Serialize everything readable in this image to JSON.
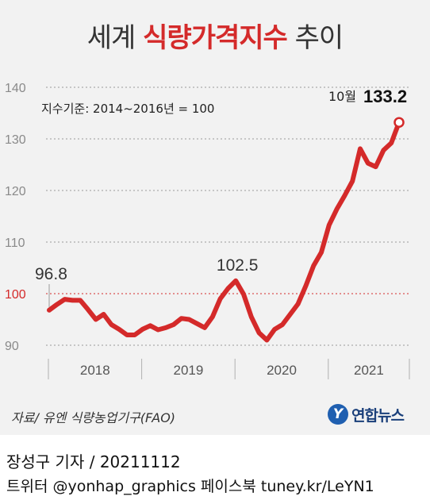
{
  "title": {
    "part1": "세계 ",
    "part2": "식량가격지수",
    "part3": " 추이"
  },
  "base_note": "지수기준: 2014~2016년  = 100",
  "source": "자료/ 유엔 식량농업기구(FAO)",
  "logo": {
    "text": "연합뉴스",
    "mark": "Y",
    "color": "#1f5fb0"
  },
  "credit": {
    "author": "장성구 기자 /",
    "date": "20211112",
    "line2": "트위터 @yonhap_graphics  페이스북 tuney.kr/LeYN1"
  },
  "colors": {
    "line": "#d42a2a",
    "reference": "#d42a2a",
    "grid": "#9a9a9a",
    "background": "#f2f2f2"
  },
  "chart_data": {
    "type": "line",
    "ylim": [
      90,
      140
    ],
    "yticks": [
      90,
      100,
      110,
      120,
      130,
      140
    ],
    "reference_y": 100,
    "years": [
      "2018",
      "2019",
      "2020",
      "2021"
    ],
    "x": [
      "2018-01",
      "2018-02",
      "2018-03",
      "2018-04",
      "2018-05",
      "2018-06",
      "2018-07",
      "2018-08",
      "2018-09",
      "2018-10",
      "2018-11",
      "2018-12",
      "2019-01",
      "2019-02",
      "2019-03",
      "2019-04",
      "2019-05",
      "2019-06",
      "2019-07",
      "2019-08",
      "2019-09",
      "2019-10",
      "2019-11",
      "2019-12",
      "2020-01",
      "2020-02",
      "2020-03",
      "2020-04",
      "2020-05",
      "2020-06",
      "2020-07",
      "2020-08",
      "2020-09",
      "2020-10",
      "2020-11",
      "2020-12",
      "2021-01",
      "2021-02",
      "2021-03",
      "2021-04",
      "2021-05",
      "2021-06",
      "2021-07",
      "2021-08",
      "2021-09",
      "2021-10"
    ],
    "values": [
      96.8,
      97.9,
      98.9,
      98.7,
      98.7,
      96.9,
      95.0,
      96.0,
      94.0,
      93.1,
      92.0,
      92.0,
      93.1,
      93.8,
      93.0,
      93.4,
      94.0,
      95.2,
      95.0,
      94.2,
      93.4,
      95.5,
      99.0,
      101.0,
      102.5,
      99.9,
      95.5,
      92.4,
      91.0,
      93.1,
      94.0,
      96.0,
      98.0,
      101.5,
      105.4,
      108.0,
      113.3,
      116.4,
      119.0,
      121.8,
      128.1,
      125.3,
      124.6,
      127.8,
      129.2,
      133.2
    ],
    "annotations": [
      {
        "label": "96.8",
        "month": "2018-01"
      },
      {
        "label": "102.5",
        "month": "2020-01"
      },
      {
        "label_month": "10월",
        "label_value": "133.2",
        "month": "2021-10"
      }
    ]
  }
}
